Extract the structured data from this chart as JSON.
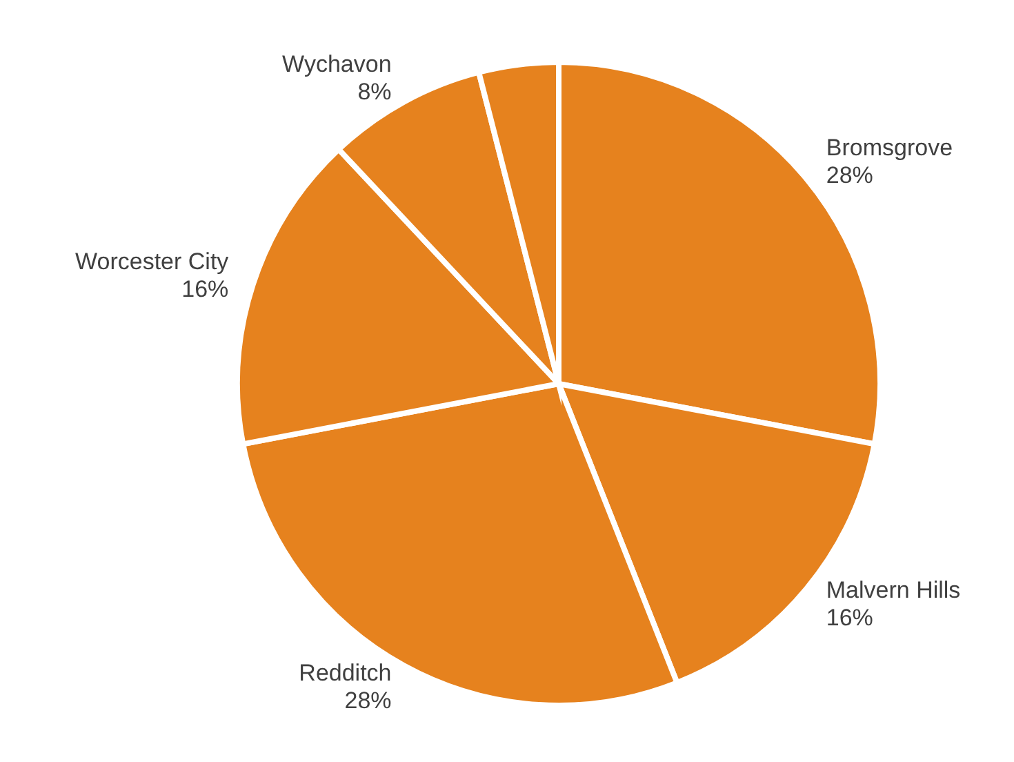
{
  "chart_data": {
    "type": "pie",
    "categories": [
      "Bromsgrove",
      "Malvern Hills",
      "Redditch",
      "Worcester City",
      "Wychavon",
      null
    ],
    "values": [
      28,
      16,
      28,
      16,
      8,
      4
    ],
    "value_labels": [
      "28%",
      "16%",
      "28%",
      "16%",
      "8%",
      null
    ],
    "colors": [
      "#e6821e",
      "#e6821e",
      "#e6821e",
      "#e6821e",
      "#e6821e",
      "#e6821e"
    ],
    "legend": false
  }
}
